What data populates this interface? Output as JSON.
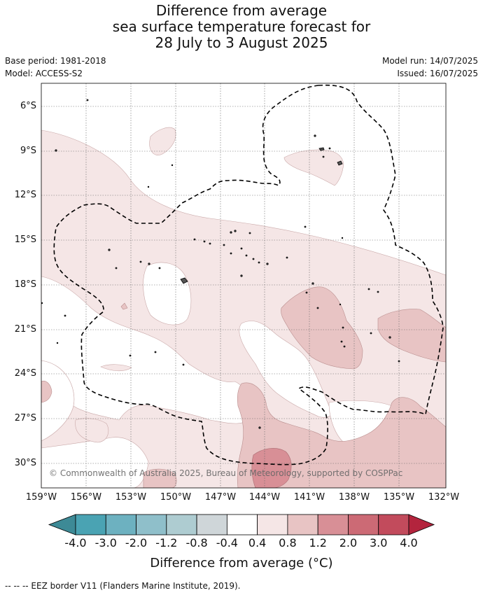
{
  "title": {
    "line1": "Difference from average",
    "line2": "sea surface temperature forecast for",
    "line3": "28 July to 3 August 2025"
  },
  "meta": {
    "base_period": "Base period: 1981-2018",
    "model": "Model: ACCESS-S2",
    "model_run": "Model run: 14/07/2025",
    "issued": "Issued: 16/07/2025"
  },
  "map": {
    "lat_labels": [
      "6°S",
      "9°S",
      "12°S",
      "15°S",
      "18°S",
      "21°S",
      "24°S",
      "27°S",
      "30°S"
    ],
    "lon_labels": [
      "159°W",
      "156°W",
      "153°W",
      "150°W",
      "147°W",
      "144°W",
      "141°W",
      "138°W",
      "135°W",
      "132°W"
    ],
    "copyright": "© Commonwealth of Australia 2025, Bureau of Meteorology, supported by COSPPac"
  },
  "colorbar": {
    "colors": [
      "#3d8a96",
      "#4aa3b3",
      "#6db1c0",
      "#8fbfca",
      "#aeccd1",
      "#cfd6d9",
      "#ffffff",
      "#f5e6e6",
      "#e8c4c4",
      "#d88f96",
      "#cc6a75",
      "#c24b5c",
      "#b3243d"
    ],
    "tick_labels": [
      "-4.0",
      "-3.0",
      "-2.0",
      "-1.2",
      "-0.8",
      "-0.4",
      "0.4",
      "0.8",
      "1.2",
      "2.0",
      "3.0",
      "4.0"
    ],
    "title": "Difference from average (°C)"
  },
  "footnote": "--  --  -- EEZ border V11 (Flanders Marine Institute, 2019)."
}
